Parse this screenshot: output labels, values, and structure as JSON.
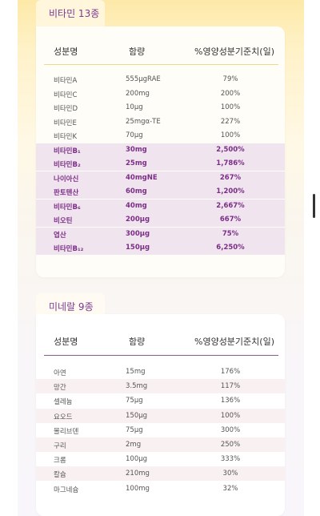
{
  "vitamins": {
    "tab_label": "비타민 13종",
    "headers": [
      "성분명",
      "함량",
      "%영양성분기준치(일)"
    ],
    "rows": [
      {
        "name": "비타민A",
        "amount": "555μgRAE",
        "pct": "79%",
        "highlight": false
      },
      {
        "name": "비타민C",
        "amount": "200mg",
        "pct": "200%",
        "highlight": false
      },
      {
        "name": "비타민D",
        "amount": "10μg",
        "pct": "100%",
        "highlight": false
      },
      {
        "name": "비타민E",
        "amount": "25mgα-TE",
        "pct": "227%",
        "highlight": false
      },
      {
        "name": "비타민K",
        "amount": "70μg",
        "pct": "100%",
        "highlight": false
      },
      {
        "name": "비타민B₁",
        "amount": "30mg",
        "pct": "2,500%",
        "highlight": true
      },
      {
        "name": "비타민B₂",
        "amount": "25mg",
        "pct": "1,786%",
        "highlight": true
      },
      {
        "name": "나이아신",
        "amount": "40mgNE",
        "pct": "267%",
        "highlight": true
      },
      {
        "name": "판토텐산",
        "amount": "60mg",
        "pct": "1,200%",
        "highlight": true
      },
      {
        "name": "비타민B₆",
        "amount": "40mg",
        "pct": "2,667%",
        "highlight": true
      },
      {
        "name": "비오틴",
        "amount": "200μg",
        "pct": "667%",
        "highlight": true
      },
      {
        "name": "엽산",
        "amount": "300μg",
        "pct": "75%",
        "highlight": true
      },
      {
        "name": "비타민B₁₂",
        "amount": "150μg",
        "pct": "6,250%",
        "highlight": true
      }
    ]
  },
  "minerals": {
    "tab_label": "미네랄 9종",
    "headers": [
      "성분명",
      "함량",
      "%영양성분기준치(일)"
    ],
    "rows": [
      {
        "name": "아연",
        "amount": "15mg",
        "pct": "176%"
      },
      {
        "name": "망간",
        "amount": "3.5mg",
        "pct": "117%"
      },
      {
        "name": "셀레늄",
        "amount": "75μg",
        "pct": "136%"
      },
      {
        "name": "요오드",
        "amount": "150μg",
        "pct": "100%"
      },
      {
        "name": "몰리브덴",
        "amount": "75μg",
        "pct": "300%"
      },
      {
        "name": "구리",
        "amount": "2mg",
        "pct": "250%"
      },
      {
        "name": "크롬",
        "amount": "100μg",
        "pct": "333%"
      },
      {
        "name": "칼슘",
        "amount": "210mg",
        "pct": "30%"
      },
      {
        "name": "마그네슘",
        "amount": "100mg",
        "pct": "32%"
      }
    ]
  },
  "colors": {
    "accent": "#7a2e86",
    "highlight_row": "#f0e4ee",
    "vitamin_rule": "#f2d98a",
    "mineral_rule": "#8a5d8c"
  }
}
